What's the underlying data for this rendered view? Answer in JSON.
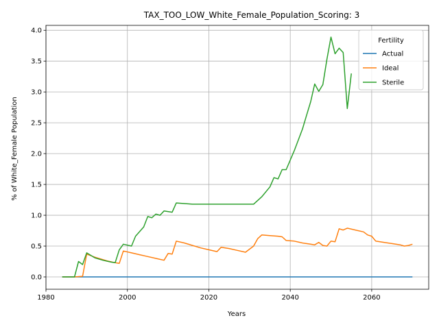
{
  "chart_data": {
    "type": "line",
    "title": "TAX_TOO_LOW_White_Female_Population_Scoring: 3",
    "xlabel": "Years",
    "ylabel": "% of White_Female Population",
    "xlim": [
      1980,
      2074
    ],
    "ylim": [
      -0.2,
      4.08
    ],
    "xticks": [
      1980,
      2000,
      2020,
      2040,
      2060
    ],
    "yticks": [
      0.0,
      0.5,
      1.0,
      1.5,
      2.0,
      2.5,
      3.0,
      3.5,
      4.0
    ],
    "ytick_labels": [
      "0.0",
      "0.5",
      "1.0",
      "1.5",
      "2.0",
      "2.5",
      "3.0",
      "3.5",
      "4.0"
    ],
    "grid": true,
    "legend": {
      "title": "Fertility",
      "placement": "top-right"
    },
    "series": [
      {
        "name": "Actual",
        "color": "#1f77b4",
        "x": [
          1984,
          2070
        ],
        "y": [
          0.0,
          0.0
        ]
      },
      {
        "name": "Ideal",
        "color": "#ff7f0e",
        "x": [
          1984,
          1987,
          1989,
          1990,
          1992,
          1995,
          1997,
          1998,
          1999,
          2001,
          2003,
          2005,
          2007,
          2009,
          2010,
          2011,
          2012,
          2014,
          2016,
          2018,
          2020,
          2022,
          2023,
          2025,
          2027,
          2029,
          2031,
          2032,
          2033,
          2035,
          2037,
          2038,
          2039,
          2041,
          2043,
          2045,
          2046,
          2047,
          2048,
          2049,
          2050,
          2051,
          2052,
          2053,
          2054,
          2056,
          2058,
          2059,
          2060,
          2061,
          2063,
          2065,
          2067,
          2068,
          2069,
          2070
        ],
        "y": [
          0.0,
          0.0,
          0.01,
          0.37,
          0.32,
          0.26,
          0.23,
          0.22,
          0.42,
          0.39,
          0.36,
          0.33,
          0.3,
          0.27,
          0.38,
          0.37,
          0.58,
          0.55,
          0.51,
          0.47,
          0.44,
          0.41,
          0.48,
          0.46,
          0.43,
          0.4,
          0.5,
          0.62,
          0.68,
          0.67,
          0.66,
          0.65,
          0.59,
          0.58,
          0.55,
          0.53,
          0.52,
          0.56,
          0.51,
          0.5,
          0.58,
          0.57,
          0.78,
          0.76,
          0.79,
          0.76,
          0.73,
          0.68,
          0.66,
          0.58,
          0.56,
          0.54,
          0.52,
          0.5,
          0.51,
          0.53
        ]
      },
      {
        "name": "Sterile",
        "color": "#2ca02c",
        "x": [
          1984,
          1987,
          1988,
          1989,
          1990,
          1992,
          1994,
          1996,
          1997,
          1998,
          1999,
          2001,
          2002,
          2004,
          2005,
          2006,
          2007,
          2008,
          2009,
          2011,
          2012,
          2014,
          2016,
          2020,
          2025,
          2030,
          2031,
          2033,
          2035,
          2036,
          2037,
          2038,
          2039,
          2041,
          2043,
          2044,
          2045,
          2046,
          2047,
          2048,
          2049,
          2050,
          2051,
          2052,
          2053,
          2054,
          2055
        ],
        "y": [
          0.0,
          0.0,
          0.25,
          0.2,
          0.39,
          0.31,
          0.27,
          0.24,
          0.23,
          0.44,
          0.53,
          0.5,
          0.66,
          0.81,
          0.98,
          0.96,
          1.02,
          1.0,
          1.07,
          1.05,
          1.2,
          1.19,
          1.18,
          1.18,
          1.18,
          1.18,
          1.18,
          1.3,
          1.46,
          1.61,
          1.59,
          1.74,
          1.74,
          2.05,
          2.4,
          2.62,
          2.84,
          3.13,
          3.01,
          3.12,
          3.53,
          3.89,
          3.62,
          3.71,
          3.64,
          2.73,
          3.3
        ]
      }
    ]
  }
}
